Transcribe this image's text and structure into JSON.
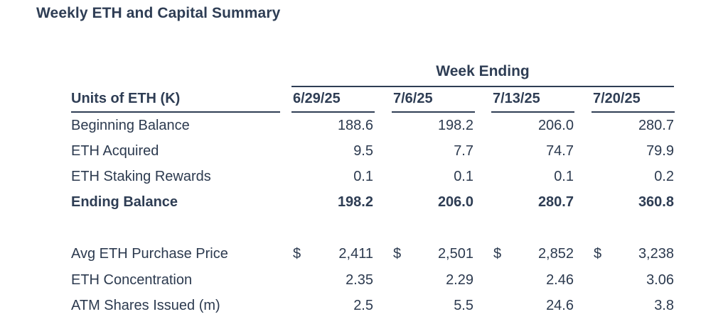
{
  "title": "Weekly ETH and Capital Summary",
  "header_group": "Week Ending",
  "row_header": "Units of ETH (K)",
  "columns": [
    "6/29/25",
    "7/6/25",
    "7/13/25",
    "7/20/25"
  ],
  "currency_symbol": "$",
  "rows": [
    {
      "label": "Beginning Balance",
      "values": [
        "188.6",
        "198.2",
        "206.0",
        "280.7"
      ]
    },
    {
      "label": "ETH Acquired",
      "values": [
        "9.5",
        "7.7",
        "74.7",
        "79.9"
      ]
    },
    {
      "label": "ETH Staking Rewards",
      "values": [
        "0.1",
        "0.1",
        "0.1",
        "0.2"
      ]
    },
    {
      "label": "Ending Balance",
      "values": [
        "198.2",
        "206.0",
        "280.7",
        "360.8"
      ]
    },
    {
      "label": "Avg ETH Purchase Price",
      "values": [
        "2,411",
        "2,501",
        "2,852",
        "3,238"
      ]
    },
    {
      "label": "ETH Concentration",
      "values": [
        "2.35",
        "2.29",
        "2.46",
        "3.06"
      ]
    },
    {
      "label": "ATM Shares Issued (m)",
      "values": [
        "2.5",
        "5.5",
        "24.6",
        "3.8"
      ]
    }
  ]
}
